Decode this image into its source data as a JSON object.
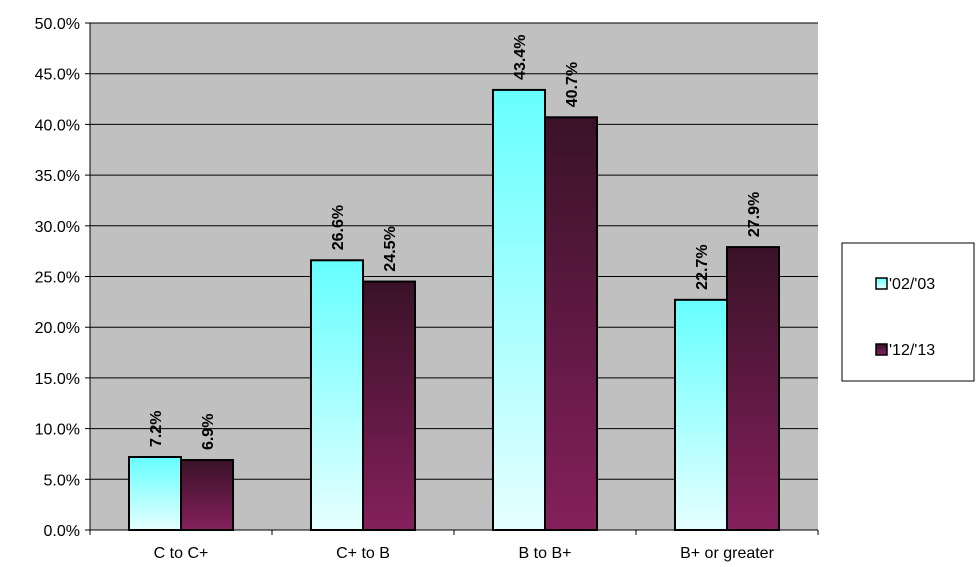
{
  "chart_data": {
    "type": "bar",
    "categories": [
      "C to C+",
      "C+ to B",
      "B to B+",
      "B+ or greater"
    ],
    "series": [
      {
        "name": "'02/'03",
        "values": [
          7.2,
          26.6,
          43.4,
          22.7
        ],
        "labels": [
          "7.2%",
          "26.6%",
          "43.4%",
          "22.7%"
        ],
        "color_top": "#66ffff",
        "color_bottom": "#e6ffff"
      },
      {
        "name": "'12/'13",
        "values": [
          6.9,
          24.5,
          40.7,
          27.9
        ],
        "labels": [
          "6.9%",
          "24.5%",
          "40.7%",
          "27.9%"
        ],
        "color_top": "#3a1228",
        "color_bottom": "#84205c"
      }
    ],
    "ylim": [
      0,
      50
    ],
    "yticks": [
      0,
      5,
      10,
      15,
      20,
      25,
      30,
      35,
      40,
      45,
      50
    ],
    "ytick_labels": [
      "0.0%",
      "5.0%",
      "10.0%",
      "15.0%",
      "20.0%",
      "25.0%",
      "30.0%",
      "35.0%",
      "40.0%",
      "45.0%",
      "50.0%"
    ],
    "grid": true,
    "plot_background": "#c0c0c0",
    "legend_position": "right",
    "title": "",
    "xlabel": "",
    "ylabel": ""
  }
}
